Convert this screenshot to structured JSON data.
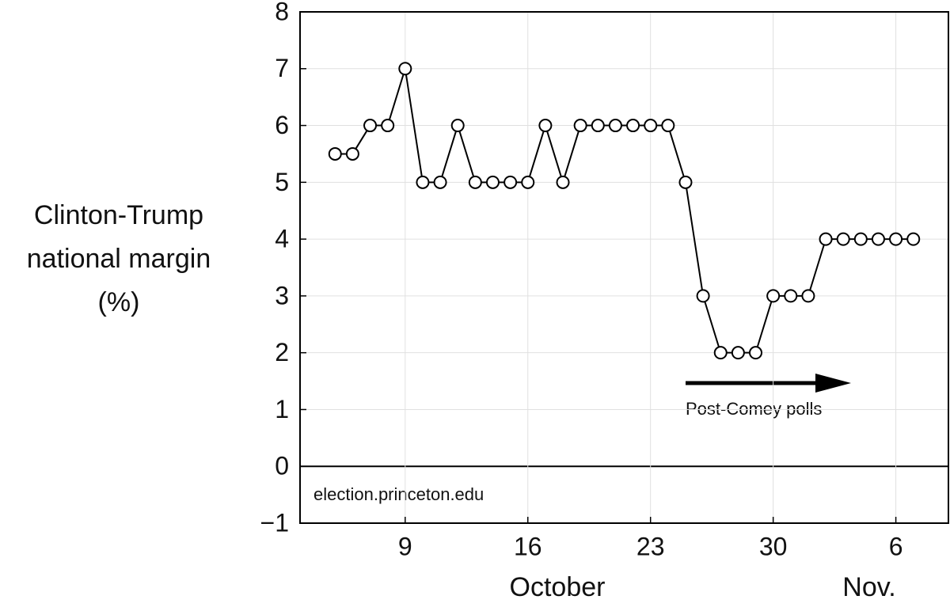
{
  "chart_data": {
    "type": "line",
    "y_label_lines": [
      "Clinton-Trump",
      "national margin",
      "(%)"
    ],
    "x_group_labels": [
      "October",
      "Nov."
    ],
    "annotations": {
      "arrow_text": "Post-Comey polls",
      "source": "election.princeton.edu"
    },
    "x": [
      5,
      6,
      7,
      8,
      9,
      10,
      11,
      12,
      13,
      14,
      15,
      16,
      17,
      18,
      19,
      20,
      21,
      22,
      23,
      24,
      25,
      26,
      27,
      28,
      29,
      30,
      31,
      32,
      33,
      34,
      35,
      36,
      37,
      38
    ],
    "series": [
      {
        "color": "#000000",
        "values": [
          5.5,
          5.5,
          6,
          6,
          7,
          5,
          5,
          6,
          5,
          5,
          5,
          5,
          6,
          5,
          6,
          6,
          6,
          6,
          6,
          6,
          5,
          3,
          2,
          2,
          2,
          3,
          3,
          3,
          4,
          4,
          4,
          4,
          4,
          4
        ]
      }
    ],
    "xlim": [
      3,
      40
    ],
    "xticks": [
      9,
      16,
      23,
      30,
      {
        "value": 37,
        "label": "6"
      }
    ],
    "ylim": [
      -1,
      8
    ],
    "yticks": [
      {
        "value": -1,
        "label": "−1"
      },
      0,
      1,
      2,
      3,
      4,
      5,
      6,
      7,
      8
    ],
    "grid": true
  }
}
